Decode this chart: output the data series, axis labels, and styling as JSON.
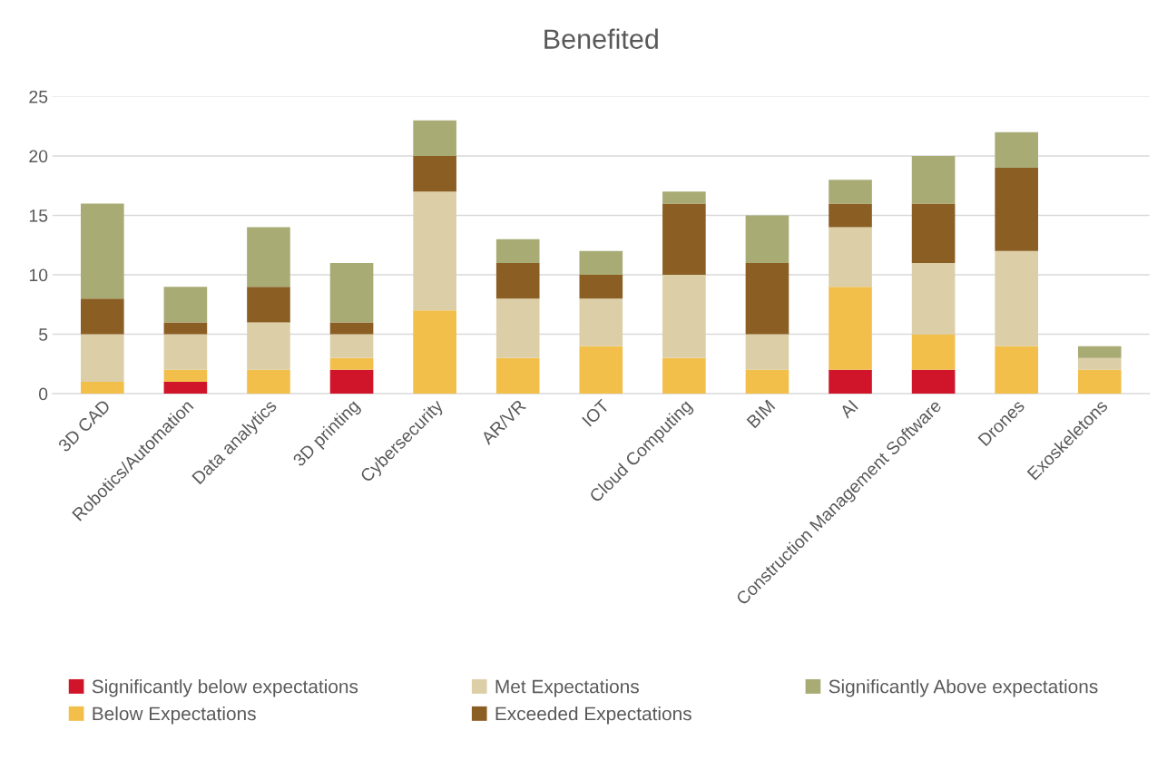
{
  "chart_data": {
    "type": "bar",
    "title": "Benefited",
    "stacked": true,
    "categories": [
      "3D CAD",
      "Robotics/Automation",
      "Data analytics",
      "3D printing",
      "Cybersecurity",
      "AR/VR",
      "IOT",
      "Cloud Computing",
      "BIM",
      "AI",
      "Construction Management Software",
      "Drones",
      "Exoskeletons"
    ],
    "series": [
      {
        "name": "Significantly below expectations",
        "color": "#d0152a",
        "values": [
          0,
          1,
          0,
          2,
          0,
          0,
          0,
          0,
          0,
          2,
          2,
          0,
          0
        ]
      },
      {
        "name": "Below Expectations",
        "color": "#f2bf4a",
        "values": [
          1,
          1,
          2,
          1,
          7,
          3,
          4,
          3,
          2,
          7,
          3,
          4,
          2
        ]
      },
      {
        "name": "Met Expectations",
        "color": "#dccfa7",
        "values": [
          4,
          3,
          4,
          2,
          10,
          5,
          4,
          7,
          3,
          5,
          6,
          8,
          1
        ]
      },
      {
        "name": "Exceeded Expectations",
        "color": "#8b5e23",
        "values": [
          3,
          1,
          3,
          1,
          3,
          3,
          2,
          6,
          6,
          2,
          5,
          7,
          0
        ]
      },
      {
        "name": "Significantly Above expectations",
        "color": "#a8ab74",
        "values": [
          8,
          3,
          5,
          5,
          3,
          2,
          2,
          1,
          4,
          2,
          4,
          3,
          1
        ]
      }
    ],
    "ylim": [
      0,
      25
    ],
    "yticks": [
      0,
      5,
      10,
      15,
      20,
      25
    ],
    "grid": "y",
    "legend": "bottom"
  }
}
